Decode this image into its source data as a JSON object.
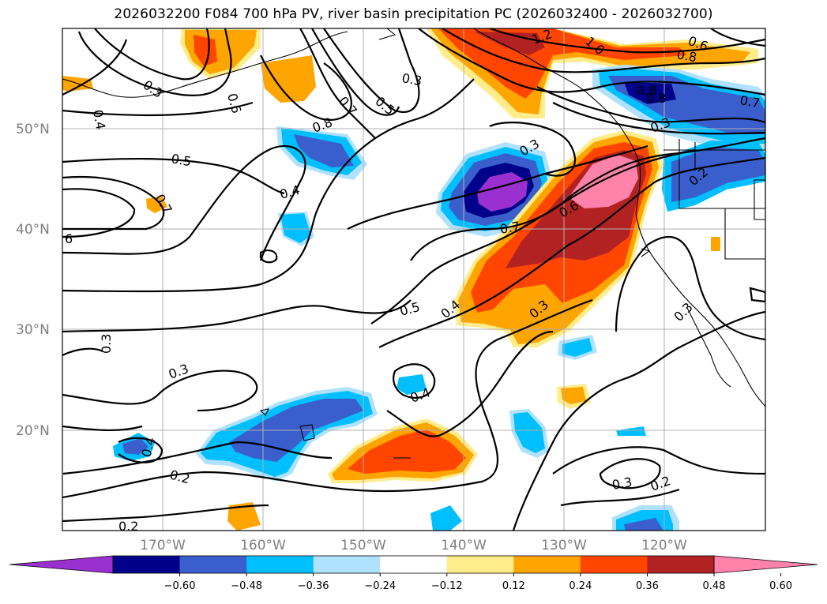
{
  "title": "2026032200 F084 700 hPa PV, river basin precipitation PC (2026032400 - 2026032700)",
  "map": {
    "lat_labels": [
      "50°N",
      "40°N",
      "30°N",
      "20°N"
    ],
    "lon_labels": [
      "170°W",
      "160°W",
      "150°W",
      "140°W",
      "130°W",
      "120°W"
    ],
    "contour_labels": [
      "0.3",
      "0.4",
      "0.6",
      "0.7",
      "0.5",
      "0.8",
      "0.3",
      "1.2",
      "1.0",
      "0.8",
      "0.6",
      "0.8",
      "0.8",
      "0.7",
      "0.3",
      "0.2",
      "0.5",
      "0.7",
      "0.4",
      "6",
      "0.3",
      "0.7",
      "0.6",
      "0.4",
      "0.5",
      "0.3",
      "0.3",
      "0.3",
      "0.4",
      "0.4",
      "0.2",
      "0.3",
      "0.2",
      "0.2",
      "0.3"
    ]
  },
  "colorbar": {
    "ticks": [
      "−0.60",
      "−0.48",
      "−0.36",
      "−0.24",
      "−0.12",
      "0.12",
      "0.24",
      "0.36",
      "0.48",
      "0.60"
    ],
    "colors": [
      "#9b30d0",
      "#00008b",
      "#3a5fcd",
      "#00bfff",
      "#b0e2ff",
      "#ffffff",
      "#ffec8b",
      "#ffa500",
      "#ff4500",
      "#b22222",
      "#ff82ab"
    ]
  }
}
